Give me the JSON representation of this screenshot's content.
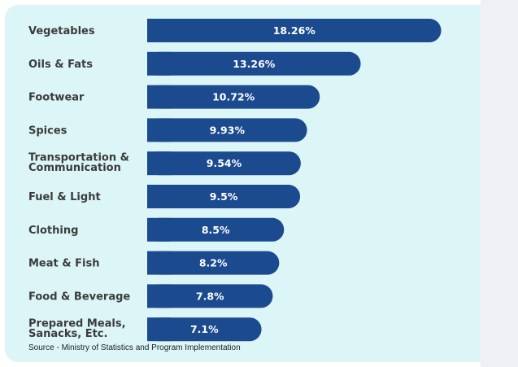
{
  "chart_data": {
    "type": "bar",
    "orientation": "horizontal",
    "categories": [
      "Vegetables",
      "Oils & Fats",
      "Footwear",
      "Spices",
      "Transportation & Communication",
      "Fuel & Light",
      "Clothing",
      "Meat & Fish",
      "Food & Beverage",
      "Prepared Meals, Sanacks, Etc."
    ],
    "category_lines": [
      [
        "Vegetables"
      ],
      [
        "Oils & Fats"
      ],
      [
        "Footwear"
      ],
      [
        "Spices"
      ],
      [
        "Transportation &",
        "Communication"
      ],
      [
        "Fuel & Light"
      ],
      [
        "Clothing"
      ],
      [
        "Meat & Fish"
      ],
      [
        "Food & Beverage"
      ],
      [
        "Prepared Meals,",
        "Sanacks, Etc."
      ]
    ],
    "values": [
      18.26,
      13.26,
      10.72,
      9.93,
      9.54,
      9.5,
      8.5,
      8.2,
      7.8,
      7.1
    ],
    "value_labels": [
      "18.26%",
      "13.26%",
      "10.72%",
      "9.93%",
      "9.54%",
      "9.5%",
      "8.5%",
      "8.2%",
      "7.8%",
      "7.1%"
    ],
    "title": "",
    "xlabel": "",
    "ylabel": "",
    "grid": false,
    "legend": "none",
    "bar_color": "#1c4a8f"
  },
  "source": "Source -  Ministry of Statistics and Program Implementation",
  "colors": {
    "card_background": "#dcf6f8",
    "bar": "#1c4a8f",
    "label_text": "#3b3b3b",
    "value_text": "#ffffff"
  }
}
